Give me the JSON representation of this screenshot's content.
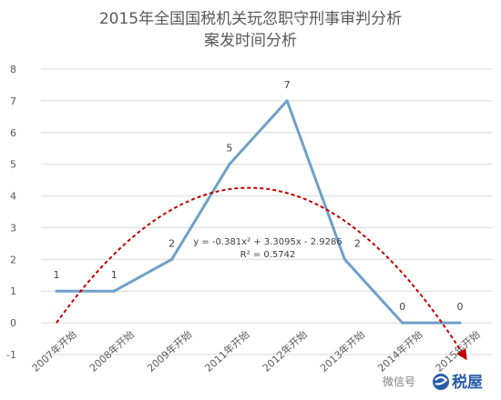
{
  "chart_data": {
    "type": "line",
    "title_lines": [
      "2015年全国国税机关玩忽职守刑事审判分析",
      "案发时间分析"
    ],
    "categories": [
      "2007年开始",
      "2008年开始",
      "2009年开始",
      "2011年开始",
      "2012年开始",
      "2013年开始",
      "2014年开始",
      "2015年开始"
    ],
    "series": [
      {
        "values": [
          1,
          1,
          2,
          5,
          7,
          2,
          0,
          0
        ],
        "color": "#6fa0c8"
      }
    ],
    "trendline": {
      "type": "polynomial-2",
      "coefficients": [
        -0.381,
        3.3095,
        -2.9286
      ],
      "equation": "y = -0.381x² + 3.3095x - 2.9286",
      "r_squared": "R² = 0.5742",
      "color": "#c00000",
      "style": "dashed-with-arrow"
    },
    "ylim": [
      -1,
      8
    ],
    "yticks": [
      -1,
      0,
      1,
      2,
      3,
      4,
      5,
      6,
      7,
      8
    ],
    "grid": "horizontal",
    "grid_color": "#d9d9d9",
    "xlabel": "",
    "ylabel": ""
  },
  "watermark": {
    "wechat_text": "微信号",
    "brand": "税屋",
    "brand_color": "#2a5caa"
  }
}
